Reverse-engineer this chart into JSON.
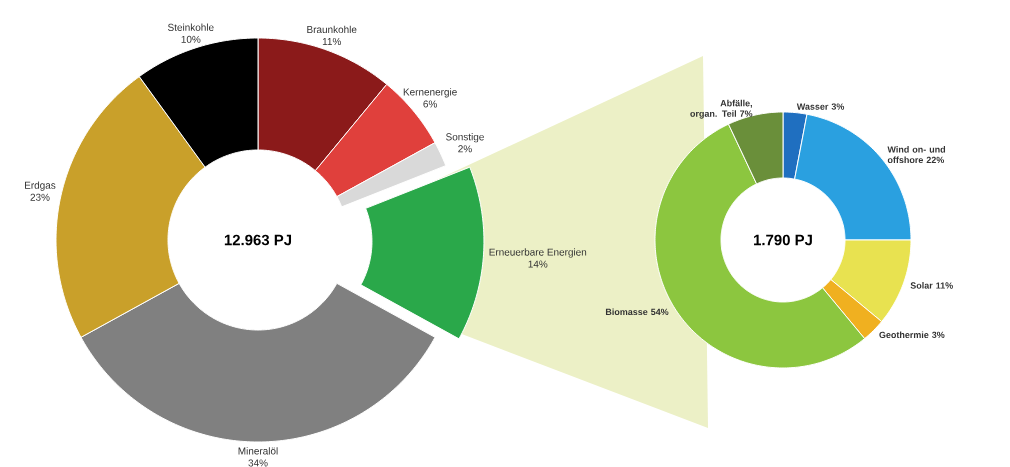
{
  "chart_data": [
    {
      "type": "donut",
      "categories": [
        "Braunkohle",
        "Kernenergie",
        "Sonstige",
        "Erneuerbare Energien",
        "Mineralöl",
        "Erdgas",
        "Steinkohle"
      ],
      "values": [
        11,
        6,
        2,
        14,
        34,
        23,
        10
      ],
      "value_labels": [
        "11%",
        "6%",
        "2%",
        "14%",
        "34%",
        "23%",
        "10%"
      ],
      "colors": [
        "#8b1a1a",
        "#e0403c",
        "#d9d9d9",
        "#2aa84a",
        "#808080",
        "#c9a02a",
        "#000000"
      ],
      "annotations": [
        "12.963 PJ"
      ]
    },
    {
      "type": "donut",
      "categories": [
        "Wasser",
        "Wind on- und offshore",
        "Solar",
        "Geothermie",
        "Biomasse",
        "Abfälle, organ. Teil"
      ],
      "values": [
        3,
        22,
        11,
        3,
        54,
        7
      ],
      "value_labels": [
        "3%",
        "22%",
        "11%",
        "3%",
        "54%",
        "7%"
      ],
      "colors": [
        "#1f6fc0",
        "#2aa0e0",
        "#e8e250",
        "#f0b020",
        "#8cc63f",
        "#6a8f3a"
      ],
      "annotations": [
        "1.790 PJ"
      ]
    }
  ]
}
